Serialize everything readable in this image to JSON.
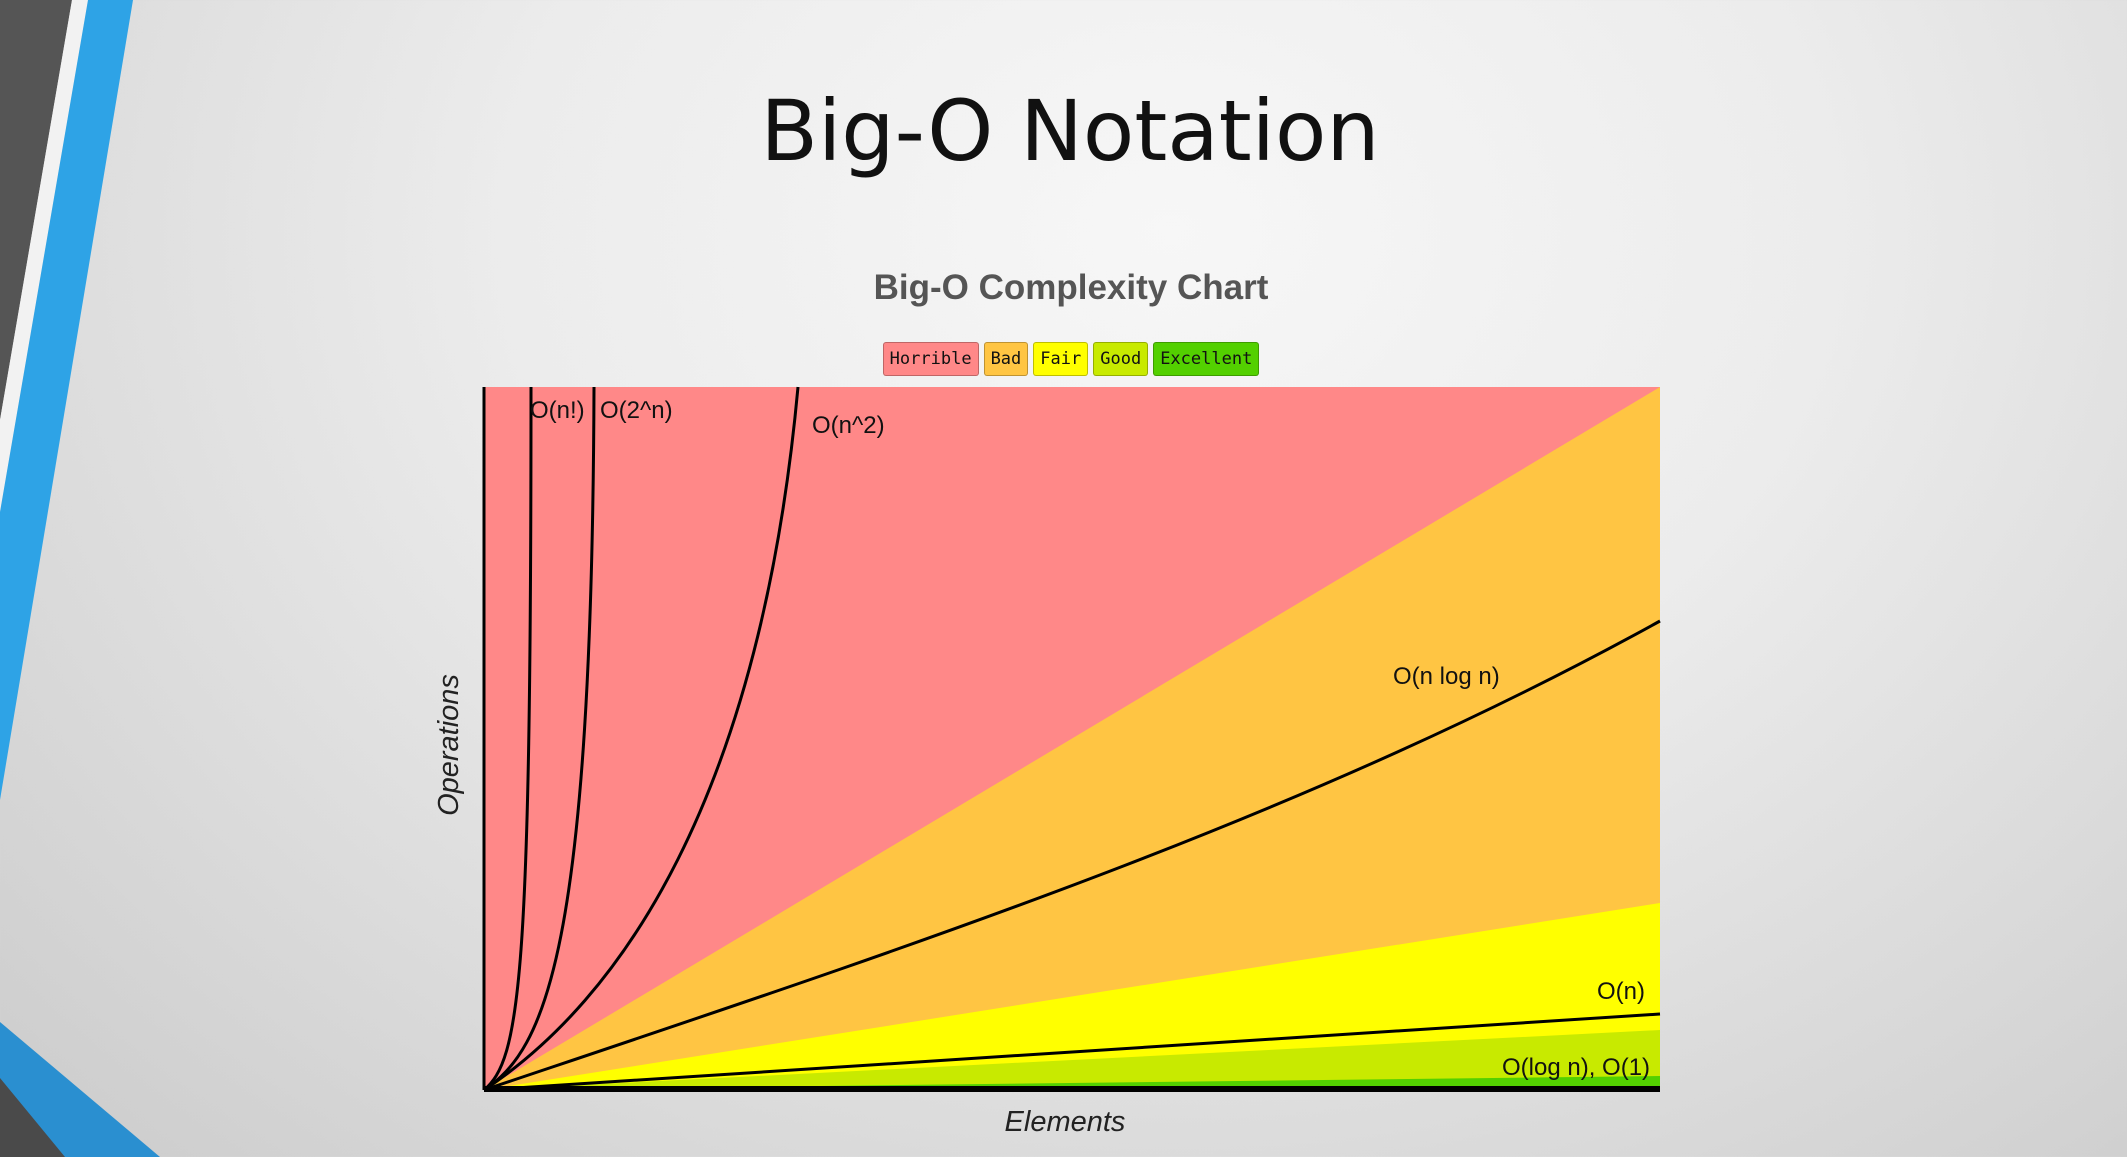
{
  "slide": {
    "title": "Big-O Notation"
  },
  "colors": {
    "horrible": "#ff8888",
    "bad": "#ffc543",
    "fair": "#ffff00",
    "good": "#c8ea00",
    "excellent": "#53d000",
    "accent_blue": "#2ea3e6",
    "accent_dark": "#555555"
  },
  "chart_data": {
    "type": "line",
    "title": "Big-O Complexity Chart",
    "xlabel": "Elements",
    "ylabel": "Operations",
    "legend": [
      {
        "label": "Horrible",
        "color": "#ff8888"
      },
      {
        "label": "Bad",
        "color": "#ffc543"
      },
      {
        "label": "Fair",
        "color": "#ffff00"
      },
      {
        "label": "Good",
        "color": "#c8ea00"
      },
      {
        "label": "Excellent",
        "color": "#53d000"
      }
    ],
    "legend_position": "top-center",
    "grid": false,
    "series": [
      {
        "name": "O(n!)"
      },
      {
        "name": "O(2^n)"
      },
      {
        "name": "O(n^2)"
      },
      {
        "name": "O(n log n)"
      },
      {
        "name": "O(n)"
      },
      {
        "name": "O(log n), O(1)"
      }
    ]
  }
}
